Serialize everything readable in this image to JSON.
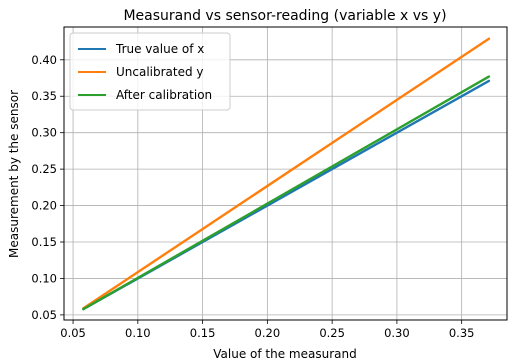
{
  "chart_data": {
    "type": "line",
    "title": "Measurand vs sensor-reading (variable x vs y)",
    "xlabel": "Value of the measurand",
    "ylabel": "Measurement by the sensor",
    "xlim": [
      0.043,
      0.385
    ],
    "ylim": [
      0.043,
      0.445
    ],
    "x_ticks": [
      0.05,
      0.1,
      0.15,
      0.2,
      0.25,
      0.3,
      0.35
    ],
    "x_tick_labels": [
      "0.05",
      "0.10",
      "0.15",
      "0.20",
      "0.25",
      "0.30",
      "0.35"
    ],
    "y_ticks": [
      0.05,
      0.1,
      0.15,
      0.2,
      0.25,
      0.3,
      0.35,
      0.4
    ],
    "y_tick_labels": [
      "0.05",
      "0.10",
      "0.15",
      "0.20",
      "0.25",
      "0.30",
      "0.35",
      "0.40"
    ],
    "grid": true,
    "legend_position": "top-left",
    "series": [
      {
        "name": "True value of x",
        "color": "#1f77b4",
        "x": [
          0.058,
          0.371
        ],
        "y": [
          0.058,
          0.371
        ]
      },
      {
        "name": "Uncalibrated y",
        "color": "#ff7f0e",
        "x": [
          0.058,
          0.371
        ],
        "y": [
          0.059,
          0.429
        ]
      },
      {
        "name": "After calibration",
        "color": "#2ca02c",
        "x": [
          0.058,
          0.371
        ],
        "y": [
          0.058,
          0.377
        ]
      }
    ]
  }
}
